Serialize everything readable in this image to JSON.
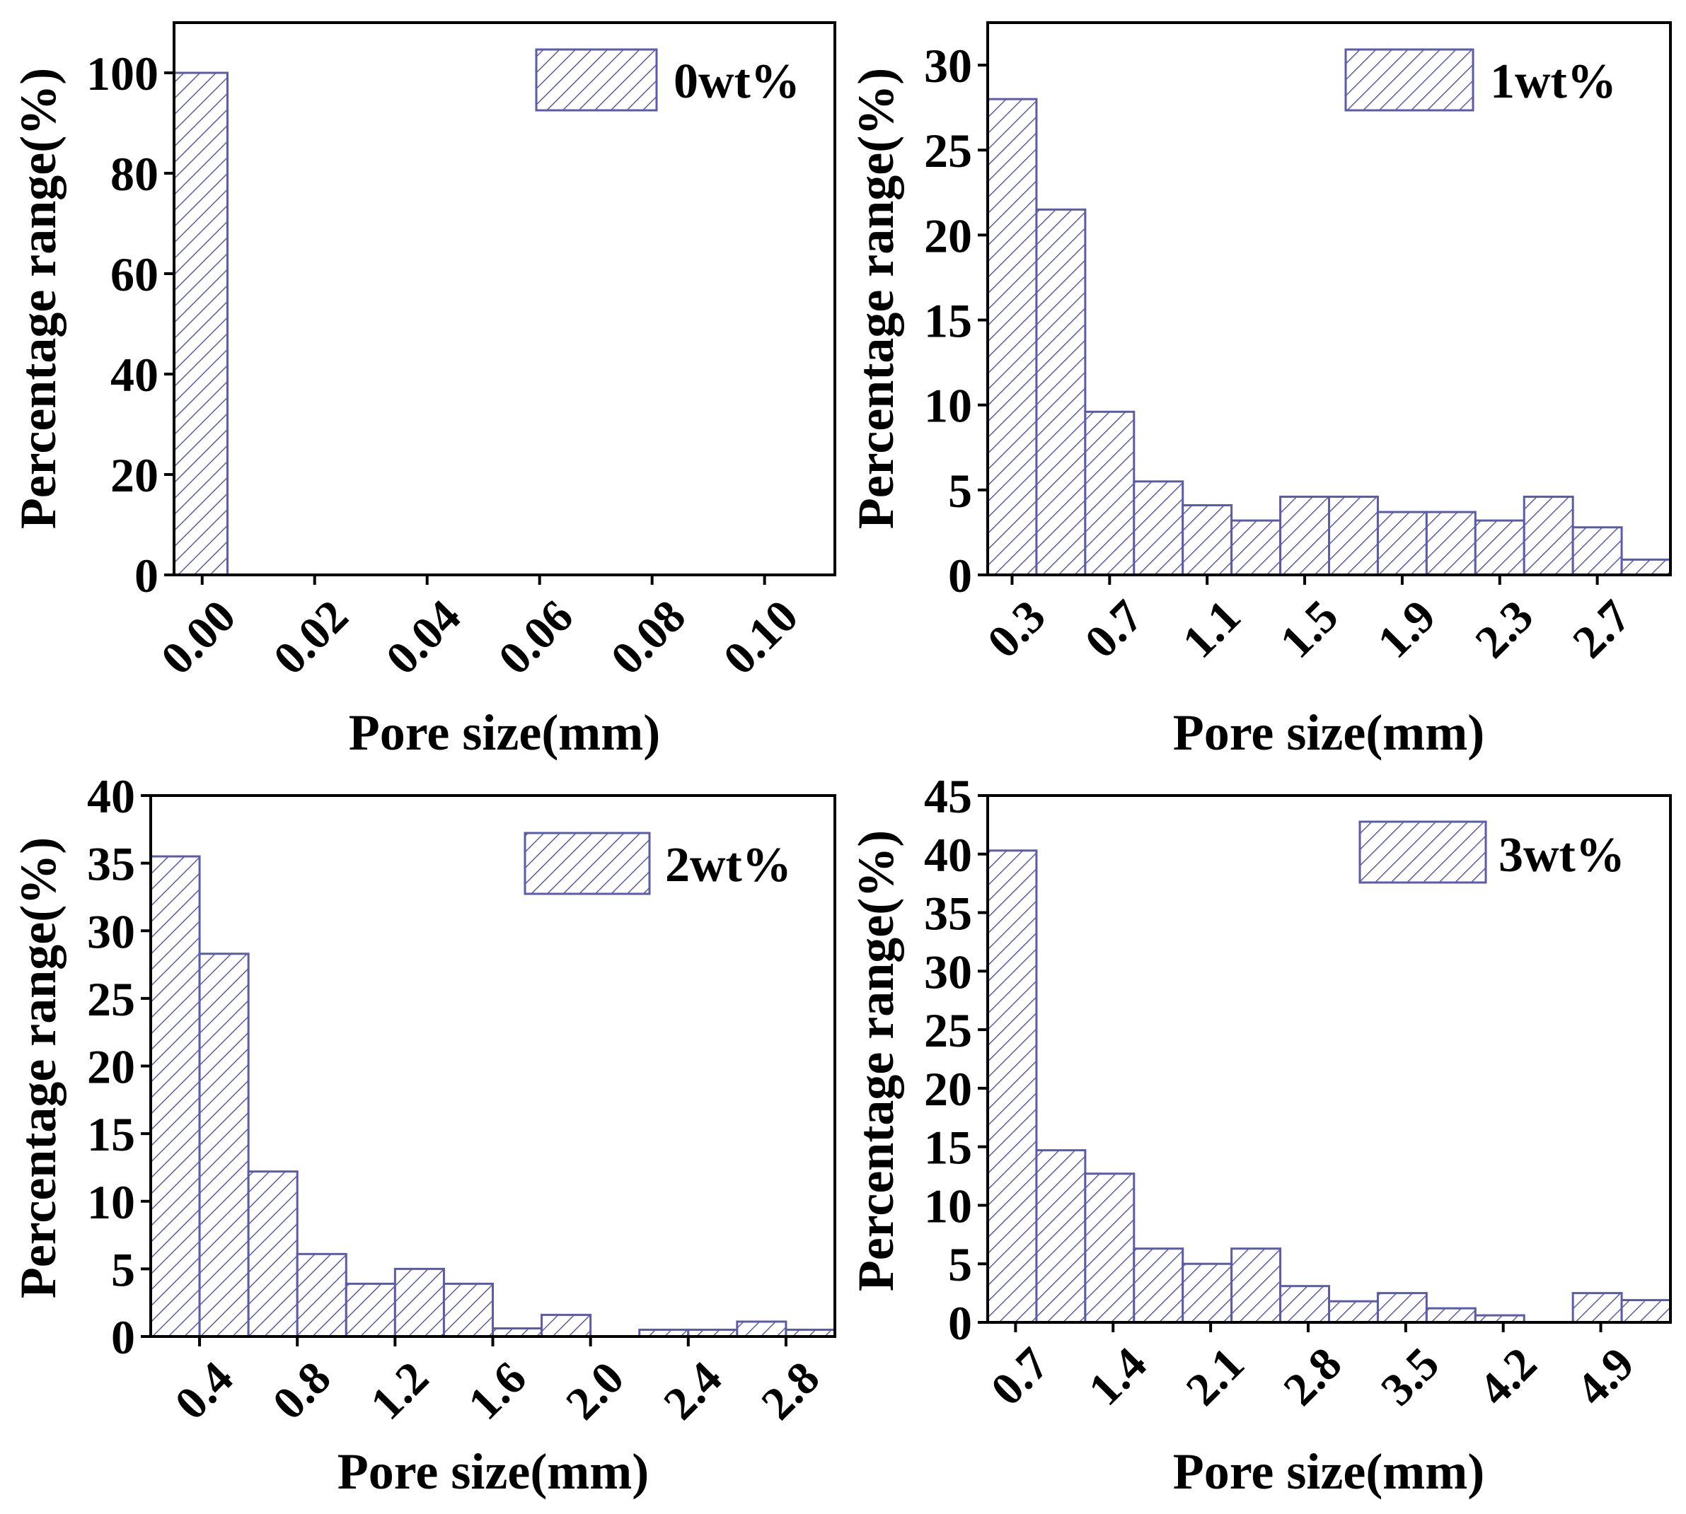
{
  "colors": {
    "bar_fill": "#ffffff",
    "bar_stroke": "#5b5ba8",
    "hatch": "#5b5ba8",
    "axis": "#000000"
  },
  "chart_data": [
    {
      "type": "bar",
      "legend": "0wt%",
      "xlabel": "Pore size(mm)",
      "ylabel": "Percentage range(%)",
      "xlim": [
        -0.005,
        0.1125
      ],
      "ylim": [
        0,
        110
      ],
      "xticks": [
        "0.00",
        "0.02",
        "0.04",
        "0.06",
        "0.08",
        "0.10"
      ],
      "xtick_values": [
        0,
        0.02,
        0.04,
        0.06,
        0.08,
        0.1
      ],
      "yticks": [
        "0",
        "20",
        "40",
        "60",
        "80",
        "100"
      ],
      "ytick_values": [
        0,
        20,
        40,
        60,
        80,
        100
      ],
      "bins": [
        [
          -0.005,
          0.0045,
          100
        ]
      ]
    },
    {
      "type": "bar",
      "legend": "1wt%",
      "xlabel": "Pore size(mm)",
      "ylabel": "Percentage range(%)",
      "xlim": [
        0.2,
        3.0
      ],
      "ylim": [
        0,
        32.5
      ],
      "xticks": [
        "0.3",
        "0.7",
        "1.1",
        "1.5",
        "1.9",
        "2.3",
        "2.7"
      ],
      "xtick_values": [
        0.3,
        0.7,
        1.1,
        1.5,
        1.9,
        2.3,
        2.7
      ],
      "yticks": [
        "0",
        "5",
        "10",
        "15",
        "20",
        "25",
        "30"
      ],
      "ytick_values": [
        0,
        5,
        10,
        15,
        20,
        25,
        30
      ],
      "bins": [
        [
          0.2,
          0.4,
          28
        ],
        [
          0.4,
          0.6,
          21.5
        ],
        [
          0.6,
          0.8,
          9.6
        ],
        [
          0.8,
          1.0,
          5.5
        ],
        [
          1.0,
          1.2,
          4.1
        ],
        [
          1.2,
          1.4,
          3.2
        ],
        [
          1.4,
          1.6,
          4.6
        ],
        [
          1.6,
          1.8,
          4.6
        ],
        [
          1.8,
          2.0,
          3.7
        ],
        [
          2.0,
          2.2,
          3.7
        ],
        [
          2.2,
          2.4,
          3.2
        ],
        [
          2.4,
          2.6,
          4.6
        ],
        [
          2.6,
          2.8,
          2.8
        ],
        [
          2.8,
          3.0,
          0.9
        ]
      ]
    },
    {
      "type": "bar",
      "legend": "2wt%",
      "xlabel": "Pore size(mm)",
      "ylabel": "Percentage range(%)",
      "xlim": [
        0.2,
        3.0
      ],
      "ylim": [
        0,
        40
      ],
      "xticks": [
        "0.4",
        "0.8",
        "1.2",
        "1.6",
        "2.0",
        "2.4",
        "2.8"
      ],
      "xtick_values": [
        0.4,
        0.8,
        1.2,
        1.6,
        2.0,
        2.4,
        2.8
      ],
      "yticks": [
        "0",
        "5",
        "10",
        "15",
        "20",
        "25",
        "30",
        "35",
        "40"
      ],
      "ytick_values": [
        0,
        5,
        10,
        15,
        20,
        25,
        30,
        35,
        40
      ],
      "bins": [
        [
          0.2,
          0.4,
          35.5
        ],
        [
          0.4,
          0.6,
          28.3
        ],
        [
          0.6,
          0.8,
          12.2
        ],
        [
          0.8,
          1.0,
          6.1
        ],
        [
          1.0,
          1.2,
          3.9
        ],
        [
          1.2,
          1.4,
          5.0
        ],
        [
          1.4,
          1.6,
          3.9
        ],
        [
          1.6,
          1.8,
          0.6
        ],
        [
          1.8,
          2.0,
          1.6
        ],
        [
          2.0,
          2.2,
          0
        ],
        [
          2.2,
          2.4,
          0.5
        ],
        [
          2.4,
          2.6,
          0.5
        ],
        [
          2.6,
          2.8,
          1.1
        ],
        [
          2.8,
          3.0,
          0.5
        ]
      ]
    },
    {
      "type": "bar",
      "legend": "3wt%",
      "xlabel": "Pore size(mm)",
      "ylabel": "Percentage range(%)",
      "xlim": [
        0.5,
        5.4
      ],
      "ylim": [
        0,
        45
      ],
      "xticks": [
        "0.7",
        "1.4",
        "2.1",
        "2.8",
        "3.5",
        "4.2",
        "4.9"
      ],
      "xtick_values": [
        0.7,
        1.4,
        2.1,
        2.8,
        3.5,
        4.2,
        4.9
      ],
      "yticks": [
        "0",
        "5",
        "10",
        "15",
        "20",
        "25",
        "30",
        "35",
        "40",
        "45"
      ],
      "ytick_values": [
        0,
        5,
        10,
        15,
        20,
        25,
        30,
        35,
        40,
        45
      ],
      "bins": [
        [
          0.5,
          0.85,
          40.3
        ],
        [
          0.85,
          1.2,
          14.7
        ],
        [
          1.2,
          1.55,
          12.7
        ],
        [
          1.55,
          1.9,
          6.3
        ],
        [
          1.9,
          2.25,
          5.0
        ],
        [
          2.25,
          2.6,
          6.3
        ],
        [
          2.6,
          2.95,
          3.1
        ],
        [
          2.95,
          3.3,
          1.8
        ],
        [
          3.3,
          3.65,
          2.5
        ],
        [
          3.65,
          4.0,
          1.2
        ],
        [
          4.0,
          4.35,
          0.6
        ],
        [
          4.35,
          4.7,
          0
        ],
        [
          4.7,
          5.05,
          2.5
        ],
        [
          5.05,
          5.4,
          1.9
        ]
      ]
    }
  ]
}
